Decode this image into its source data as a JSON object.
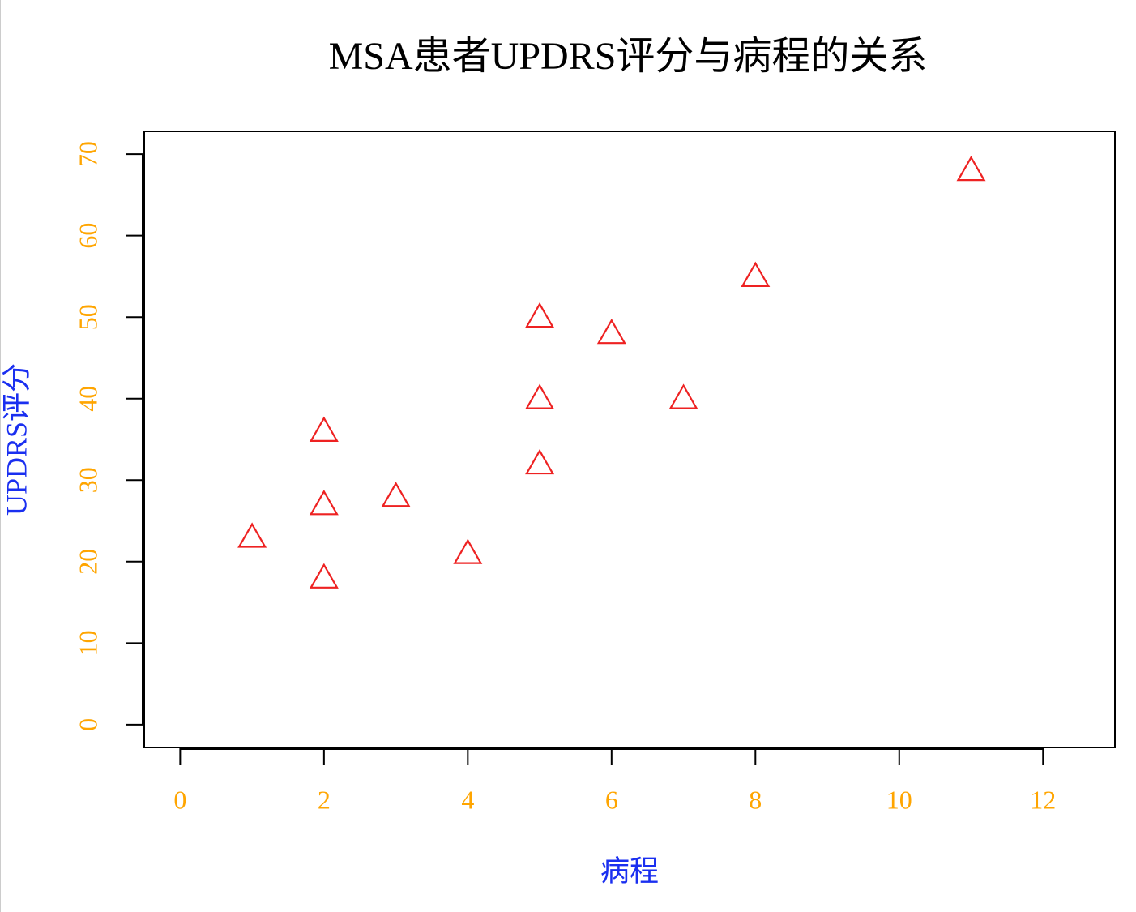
{
  "chart_data": {
    "type": "scatter",
    "title": "MSA患者UPDRS评分与病程的关系",
    "x_label": "病程",
    "y_label": "UPDRS评分",
    "series": [
      {
        "color": "#ee2222",
        "x": [
          1,
          2,
          2,
          2,
          3,
          4,
          5,
          5,
          5,
          6,
          7,
          8,
          11
        ],
        "values": [
          23,
          36,
          27,
          18,
          28,
          21,
          50,
          40,
          32,
          48,
          40,
          55,
          68
        ]
      }
    ],
    "xlim": [
      -0.5,
      13
    ],
    "ylim": [
      -2.8,
      72.8
    ],
    "xticks": [
      0,
      2,
      4,
      6,
      8,
      10,
      12
    ],
    "yticks": [
      0,
      10,
      20,
      30,
      40,
      50,
      60,
      70
    ],
    "tick_color": "#ffa500",
    "label_color": "#1a2ff0",
    "grid": false
  }
}
